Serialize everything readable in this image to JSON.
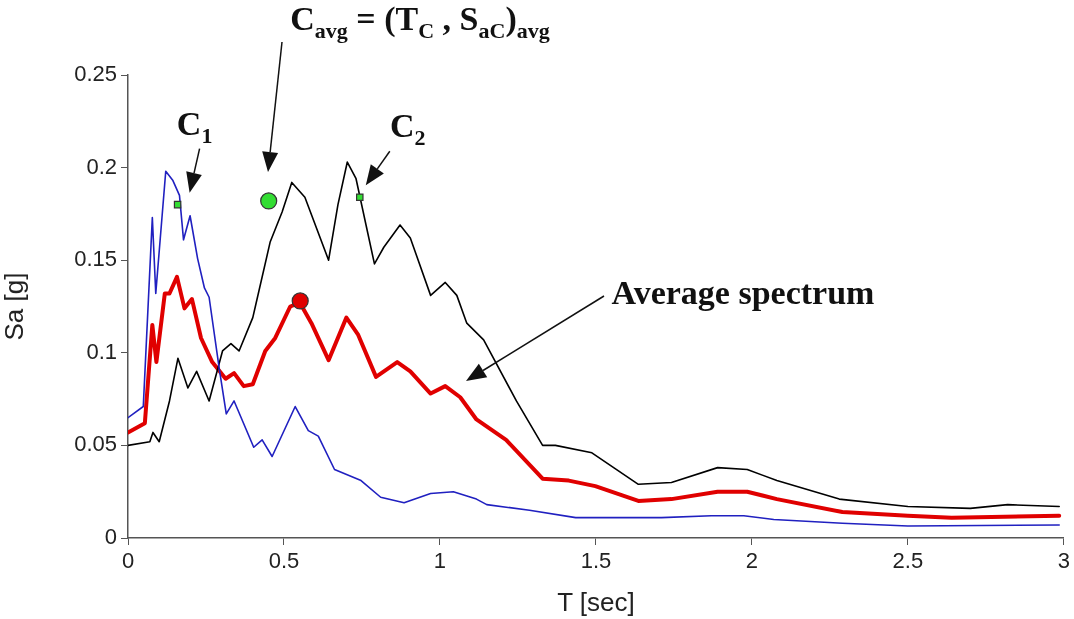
{
  "chart_data": {
    "type": "line",
    "xlabel": "T [sec]",
    "ylabel": "Sa [g]",
    "xlim": [
      0,
      3
    ],
    "ylim": [
      0,
      0.25
    ],
    "xticks": [
      0,
      0.5,
      1,
      1.5,
      2,
      2.5,
      3
    ],
    "yticks": [
      0,
      0.05,
      0.1,
      0.15,
      0.2,
      0.25
    ],
    "series": [
      {
        "color": "#2020c0",
        "x": [
          0,
          0.049,
          0.078,
          0.089,
          0.121,
          0.144,
          0.165,
          0.178,
          0.199,
          0.223,
          0.245,
          0.26,
          0.292,
          0.315,
          0.34,
          0.403,
          0.43,
          0.462,
          0.536,
          0.578,
          0.61,
          0.662,
          0.747,
          0.81,
          0.885,
          0.97,
          1.043,
          1.117,
          1.15,
          1.287,
          1.435,
          1.71,
          1.87,
          1.974,
          2.07,
          2.29,
          2.5,
          2.985
        ],
        "values": [
          0.065,
          0.071,
          0.173,
          0.132,
          0.198,
          0.193,
          0.185,
          0.161,
          0.174,
          0.151,
          0.135,
          0.13,
          0.092,
          0.067,
          0.074,
          0.049,
          0.053,
          0.044,
          0.071,
          0.058,
          0.055,
          0.037,
          0.031,
          0.022,
          0.019,
          0.024,
          0.025,
          0.021,
          0.018,
          0.015,
          0.011,
          0.011,
          0.012,
          0.012,
          0.01,
          0.008,
          0.0065,
          0.007
        ]
      },
      {
        "color": "#000000",
        "x": [
          0,
          0.07,
          0.08,
          0.1,
          0.133,
          0.16,
          0.192,
          0.22,
          0.26,
          0.303,
          0.33,
          0.356,
          0.4,
          0.456,
          0.494,
          0.525,
          0.567,
          0.643,
          0.673,
          0.703,
          0.731,
          0.763,
          0.79,
          0.82,
          0.872,
          0.905,
          0.97,
          1.017,
          1.054,
          1.086,
          1.14,
          1.245,
          1.329,
          1.37,
          1.487,
          1.636,
          1.742,
          1.89,
          1.985,
          2.08,
          2.28,
          2.5,
          2.7,
          2.82,
          2.985
        ],
        "values": [
          0.05,
          0.052,
          0.057,
          0.052,
          0.074,
          0.097,
          0.081,
          0.09,
          0.074,
          0.101,
          0.105,
          0.101,
          0.119,
          0.16,
          0.176,
          0.192,
          0.184,
          0.15,
          0.18,
          0.203,
          0.194,
          0.169,
          0.148,
          0.157,
          0.169,
          0.162,
          0.131,
          0.138,
          0.131,
          0.116,
          0.107,
          0.074,
          0.05,
          0.05,
          0.046,
          0.029,
          0.03,
          0.038,
          0.037,
          0.031,
          0.021,
          0.017,
          0.016,
          0.018,
          0.017
        ]
      },
      {
        "color": "#e00000",
        "x": [
          0,
          0.054,
          0.078,
          0.091,
          0.118,
          0.133,
          0.157,
          0.181,
          0.205,
          0.234,
          0.27,
          0.313,
          0.34,
          0.371,
          0.4,
          0.44,
          0.472,
          0.52,
          0.551,
          0.588,
          0.643,
          0.7,
          0.737,
          0.795,
          0.863,
          0.905,
          0.97,
          1.017,
          1.065,
          1.117,
          1.212,
          1.329,
          1.413,
          1.498,
          1.636,
          1.742,
          1.89,
          1.985,
          2.08,
          2.29,
          2.5,
          2.64,
          2.985
        ],
        "values": [
          0.057,
          0.062,
          0.115,
          0.095,
          0.132,
          0.132,
          0.141,
          0.124,
          0.129,
          0.108,
          0.095,
          0.086,
          0.089,
          0.082,
          0.083,
          0.101,
          0.108,
          0.125,
          0.127,
          0.116,
          0.096,
          0.119,
          0.11,
          0.087,
          0.095,
          0.09,
          0.078,
          0.082,
          0.076,
          0.064,
          0.053,
          0.032,
          0.031,
          0.028,
          0.02,
          0.021,
          0.025,
          0.025,
          0.021,
          0.014,
          0.012,
          0.011,
          0.012
        ]
      },
      {
        "type": "scatter",
        "marker": "square",
        "color": "#33dd33",
        "x": [
          0.159,
          0.743
        ],
        "values": [
          0.18,
          0.184
        ]
      },
      {
        "type": "scatter",
        "marker": "circle",
        "color": "#33dd33",
        "x": [
          0.451
        ],
        "values": [
          0.182
        ]
      },
      {
        "type": "scatter",
        "marker": "circle",
        "color": "#e00000",
        "x": [
          0.552
        ],
        "values": [
          0.128
        ]
      }
    ],
    "annotations": [
      {
        "text": "C$_{1}$",
        "x": 0.159,
        "y": 0.18
      },
      "C$_{avg}$ = (T$_{C}$ , S$_{aC}$)$_{avg}$",
      {
        "text": "C$_{2}$",
        "x": 0.743,
        "y": 0.184
      },
      "Average spectrum"
    ]
  }
}
